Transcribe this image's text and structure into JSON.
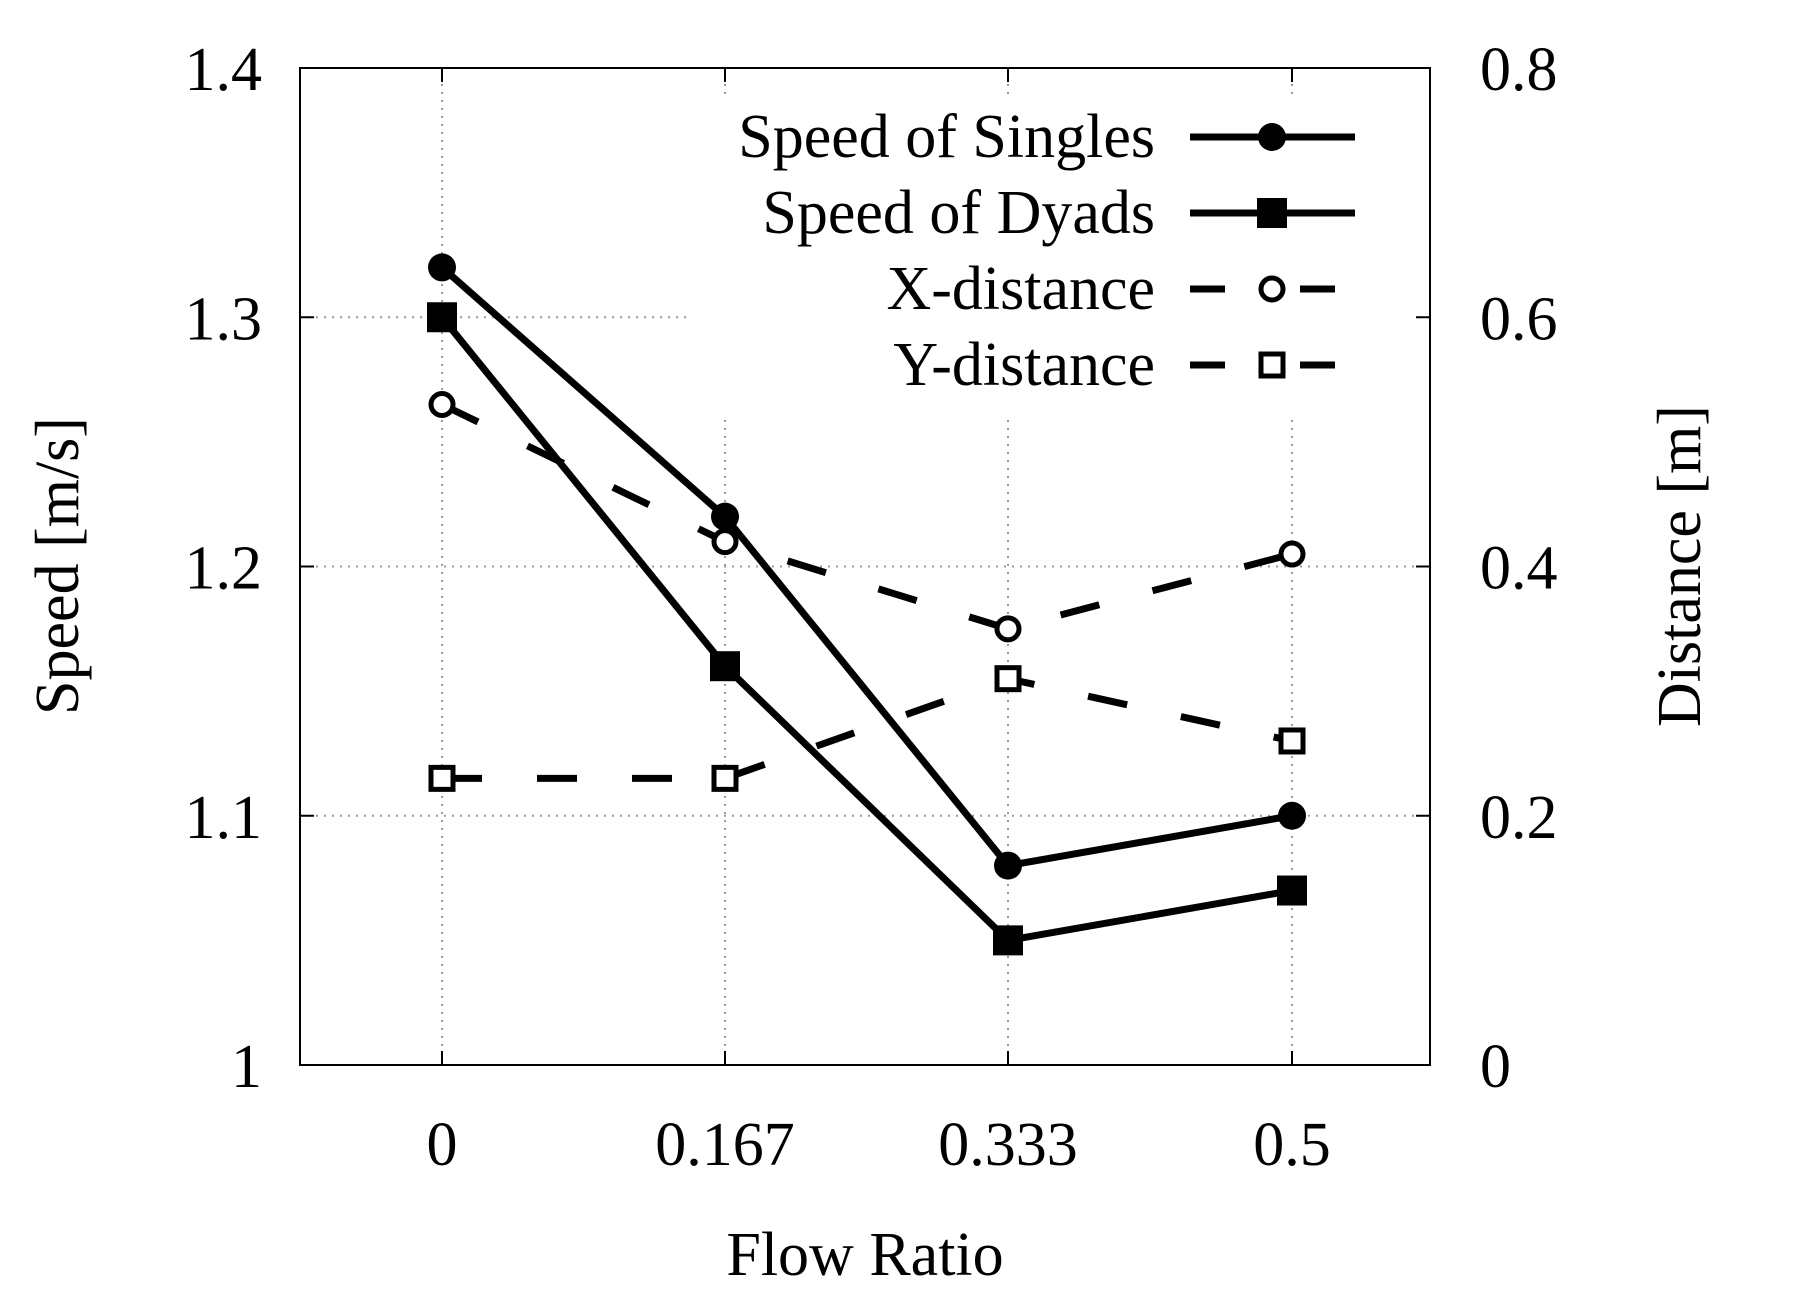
{
  "chart_data": {
    "type": "line",
    "title": "",
    "xlabel": "Flow Ratio",
    "ylabel": "Speed [m/s]",
    "y2label": "Distance [m]",
    "categories": [
      "0",
      "0.167",
      "0.333",
      "0.5"
    ],
    "x": [
      0,
      0.167,
      0.333,
      0.5
    ],
    "ylim": [
      1.0,
      1.4
    ],
    "y2lim": [
      0,
      0.8
    ],
    "yticks": [
      "1",
      "1.1",
      "1.2",
      "1.3",
      "1.4"
    ],
    "y2ticks": [
      "0",
      "0.2",
      "0.4",
      "0.6",
      "0.8"
    ],
    "grid": true,
    "legend_position": "top-right",
    "series": [
      {
        "name": "Speed of Singles",
        "axis": "left",
        "style": "solid",
        "marker": "filled-circle",
        "values": [
          1.32,
          1.22,
          1.08,
          1.1
        ]
      },
      {
        "name": "Speed of Dyads",
        "axis": "left",
        "style": "solid",
        "marker": "filled-square",
        "values": [
          1.3,
          1.16,
          1.05,
          1.07
        ]
      },
      {
        "name": "X-distance",
        "axis": "right",
        "style": "dashed",
        "marker": "open-circle",
        "values": [
          0.53,
          0.42,
          0.35,
          0.41
        ]
      },
      {
        "name": "Y-distance",
        "axis": "right",
        "style": "dashed",
        "marker": "open-square",
        "values": [
          0.23,
          0.23,
          0.31,
          0.26
        ]
      }
    ]
  }
}
